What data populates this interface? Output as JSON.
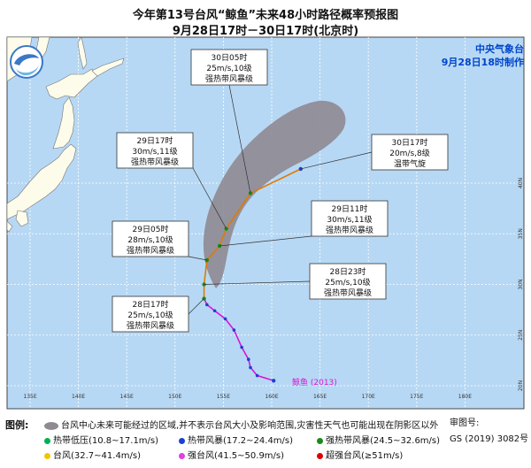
{
  "title_line1": "今年第13号台风“鲸鱼”未来48小时路径概率预报图",
  "title_line2": "9月28日17时－30日17时(北京时)",
  "agency": "中央气象台",
  "issued": "9月28日18时制作",
  "typhoon_label": "鲸鱼",
  "typhoon_code": "(2013)",
  "lon_ticks": [
    "135E",
    "140E",
    "145E",
    "150E",
    "155E",
    "160E",
    "165E",
    "170E",
    "175E",
    "180E"
  ],
  "lat_ticks": [
    "20N",
    "25N",
    "30N",
    "35N",
    "40N"
  ],
  "forecasts": [
    {
      "time": "30日05时",
      "wind": "25m/s,10级",
      "type": "强热带风暴级",
      "lon": 157.8,
      "lat": 39.0
    },
    {
      "time": "29日17时",
      "wind": "30m/s,11级",
      "type": "强热带风暴级",
      "lon": 155.3,
      "lat": 35.5
    },
    {
      "time": "29日05时",
      "wind": "28m/s,10级",
      "type": "强热带风暴级",
      "lon": 153.3,
      "lat": 32.4
    },
    {
      "time": "28日17时",
      "wind": "25m/s,10级",
      "type": "强热带风暴级",
      "lon": 153.0,
      "lat": 28.6
    },
    {
      "time": "30日17时",
      "wind": "20m/s,8级",
      "type": "温带气旋",
      "lon": 163.0,
      "lat": 41.4
    },
    {
      "time": "29日11时",
      "wind": "30m/s,11级",
      "type": "强热带风暴级",
      "lon": 154.6,
      "lat": 33.8
    },
    {
      "time": "28日23时",
      "wind": "25m/s,10级",
      "type": "强热带风暴级",
      "lon": 153.0,
      "lat": 30.0
    }
  ],
  "legend": {
    "label": "图例:",
    "cone_note": "台风中心未来可能经过的区域,并不表示台风大小及影响范围,灾害性天气也可能出现在阴影区以外",
    "items": [
      {
        "text": "热带低压(10.8~17.1m/s)",
        "color": "#00b050"
      },
      {
        "text": "热带风暴(17.2~24.4m/s)",
        "color": "#1f3fd0"
      },
      {
        "text": "强热带风暴(24.5~32.6m/s)",
        "color": "#1a8a1a"
      },
      {
        "text": "台风(32.7~41.4m/s)",
        "color": "#f2c400"
      },
      {
        "text": "强台风(41.5~50.9m/s)",
        "color": "#e040e0"
      },
      {
        "text": "超强台风(≥51m/s)",
        "color": "#e00000"
      }
    ]
  },
  "review_no_label": "审图号:",
  "review_no": "GS (2019) 3082号",
  "colors": {
    "ocean": "#b7d8f4",
    "land": "#fdfbea",
    "cone": "#8f8a92",
    "past_track": "#d815d8",
    "forecast_track": "#e07a00"
  }
}
